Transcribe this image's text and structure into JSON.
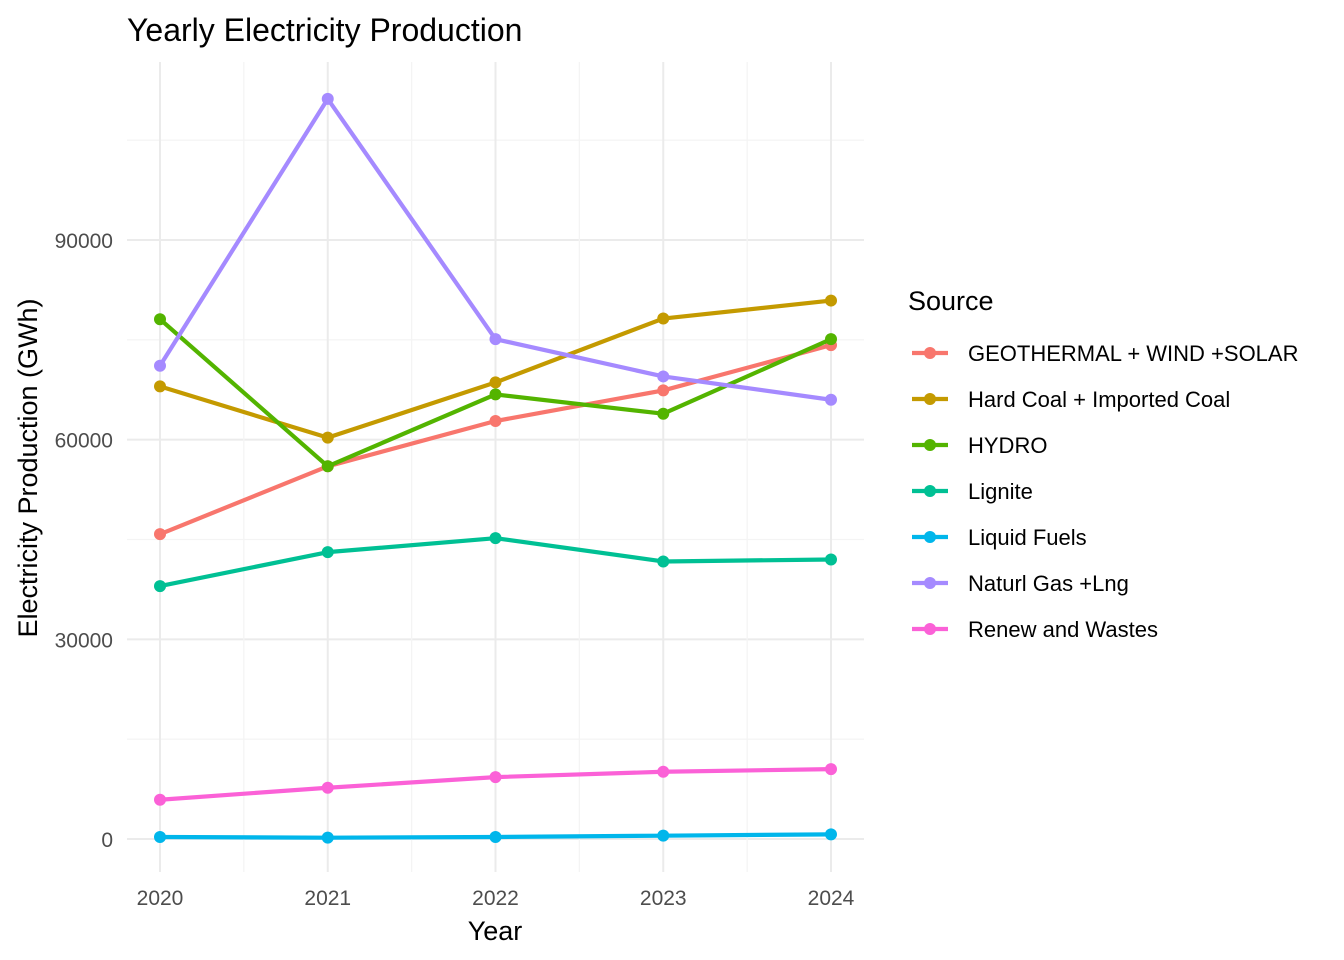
{
  "chart_data": {
    "type": "line",
    "title": "Yearly Electricity Production",
    "xlabel": "Year",
    "ylabel": "Electricity Production (GWh)",
    "x": [
      2020,
      2021,
      2022,
      2023,
      2024
    ],
    "x_ticks": [
      "2020",
      "2021",
      "2022",
      "2023",
      "2024"
    ],
    "y_ticks": [
      "0",
      "30000",
      "60000",
      "90000"
    ],
    "ylim": [
      -5000,
      117000
    ],
    "grid": true,
    "legend": {
      "title": "Source",
      "position": "right"
    },
    "series": [
      {
        "name": "GEOTHERMAL + WIND +SOLAR",
        "color": "#F8766D",
        "values": [
          45800,
          56000,
          62800,
          67400,
          74200
        ]
      },
      {
        "name": "Hard Coal + Imported Coal",
        "color": "#C49A00",
        "values": [
          68000,
          60300,
          68600,
          78200,
          80900
        ]
      },
      {
        "name": "HYDRO",
        "color": "#53B400",
        "values": [
          78100,
          56000,
          66800,
          63900,
          75100
        ]
      },
      {
        "name": "Lignite",
        "color": "#00C094",
        "values": [
          38000,
          43100,
          45200,
          41700,
          42000
        ]
      },
      {
        "name": "Liquid Fuels",
        "color": "#00B6EB",
        "values": [
          300,
          200,
          300,
          500,
          700
        ]
      },
      {
        "name": "Naturl Gas +Lng",
        "color": "#A58AFF",
        "values": [
          71100,
          111200,
          75100,
          69500,
          66000
        ]
      },
      {
        "name": "Renew and Wastes",
        "color": "#FB61D7",
        "values": [
          5900,
          7700,
          9300,
          10100,
          10500
        ]
      }
    ]
  }
}
